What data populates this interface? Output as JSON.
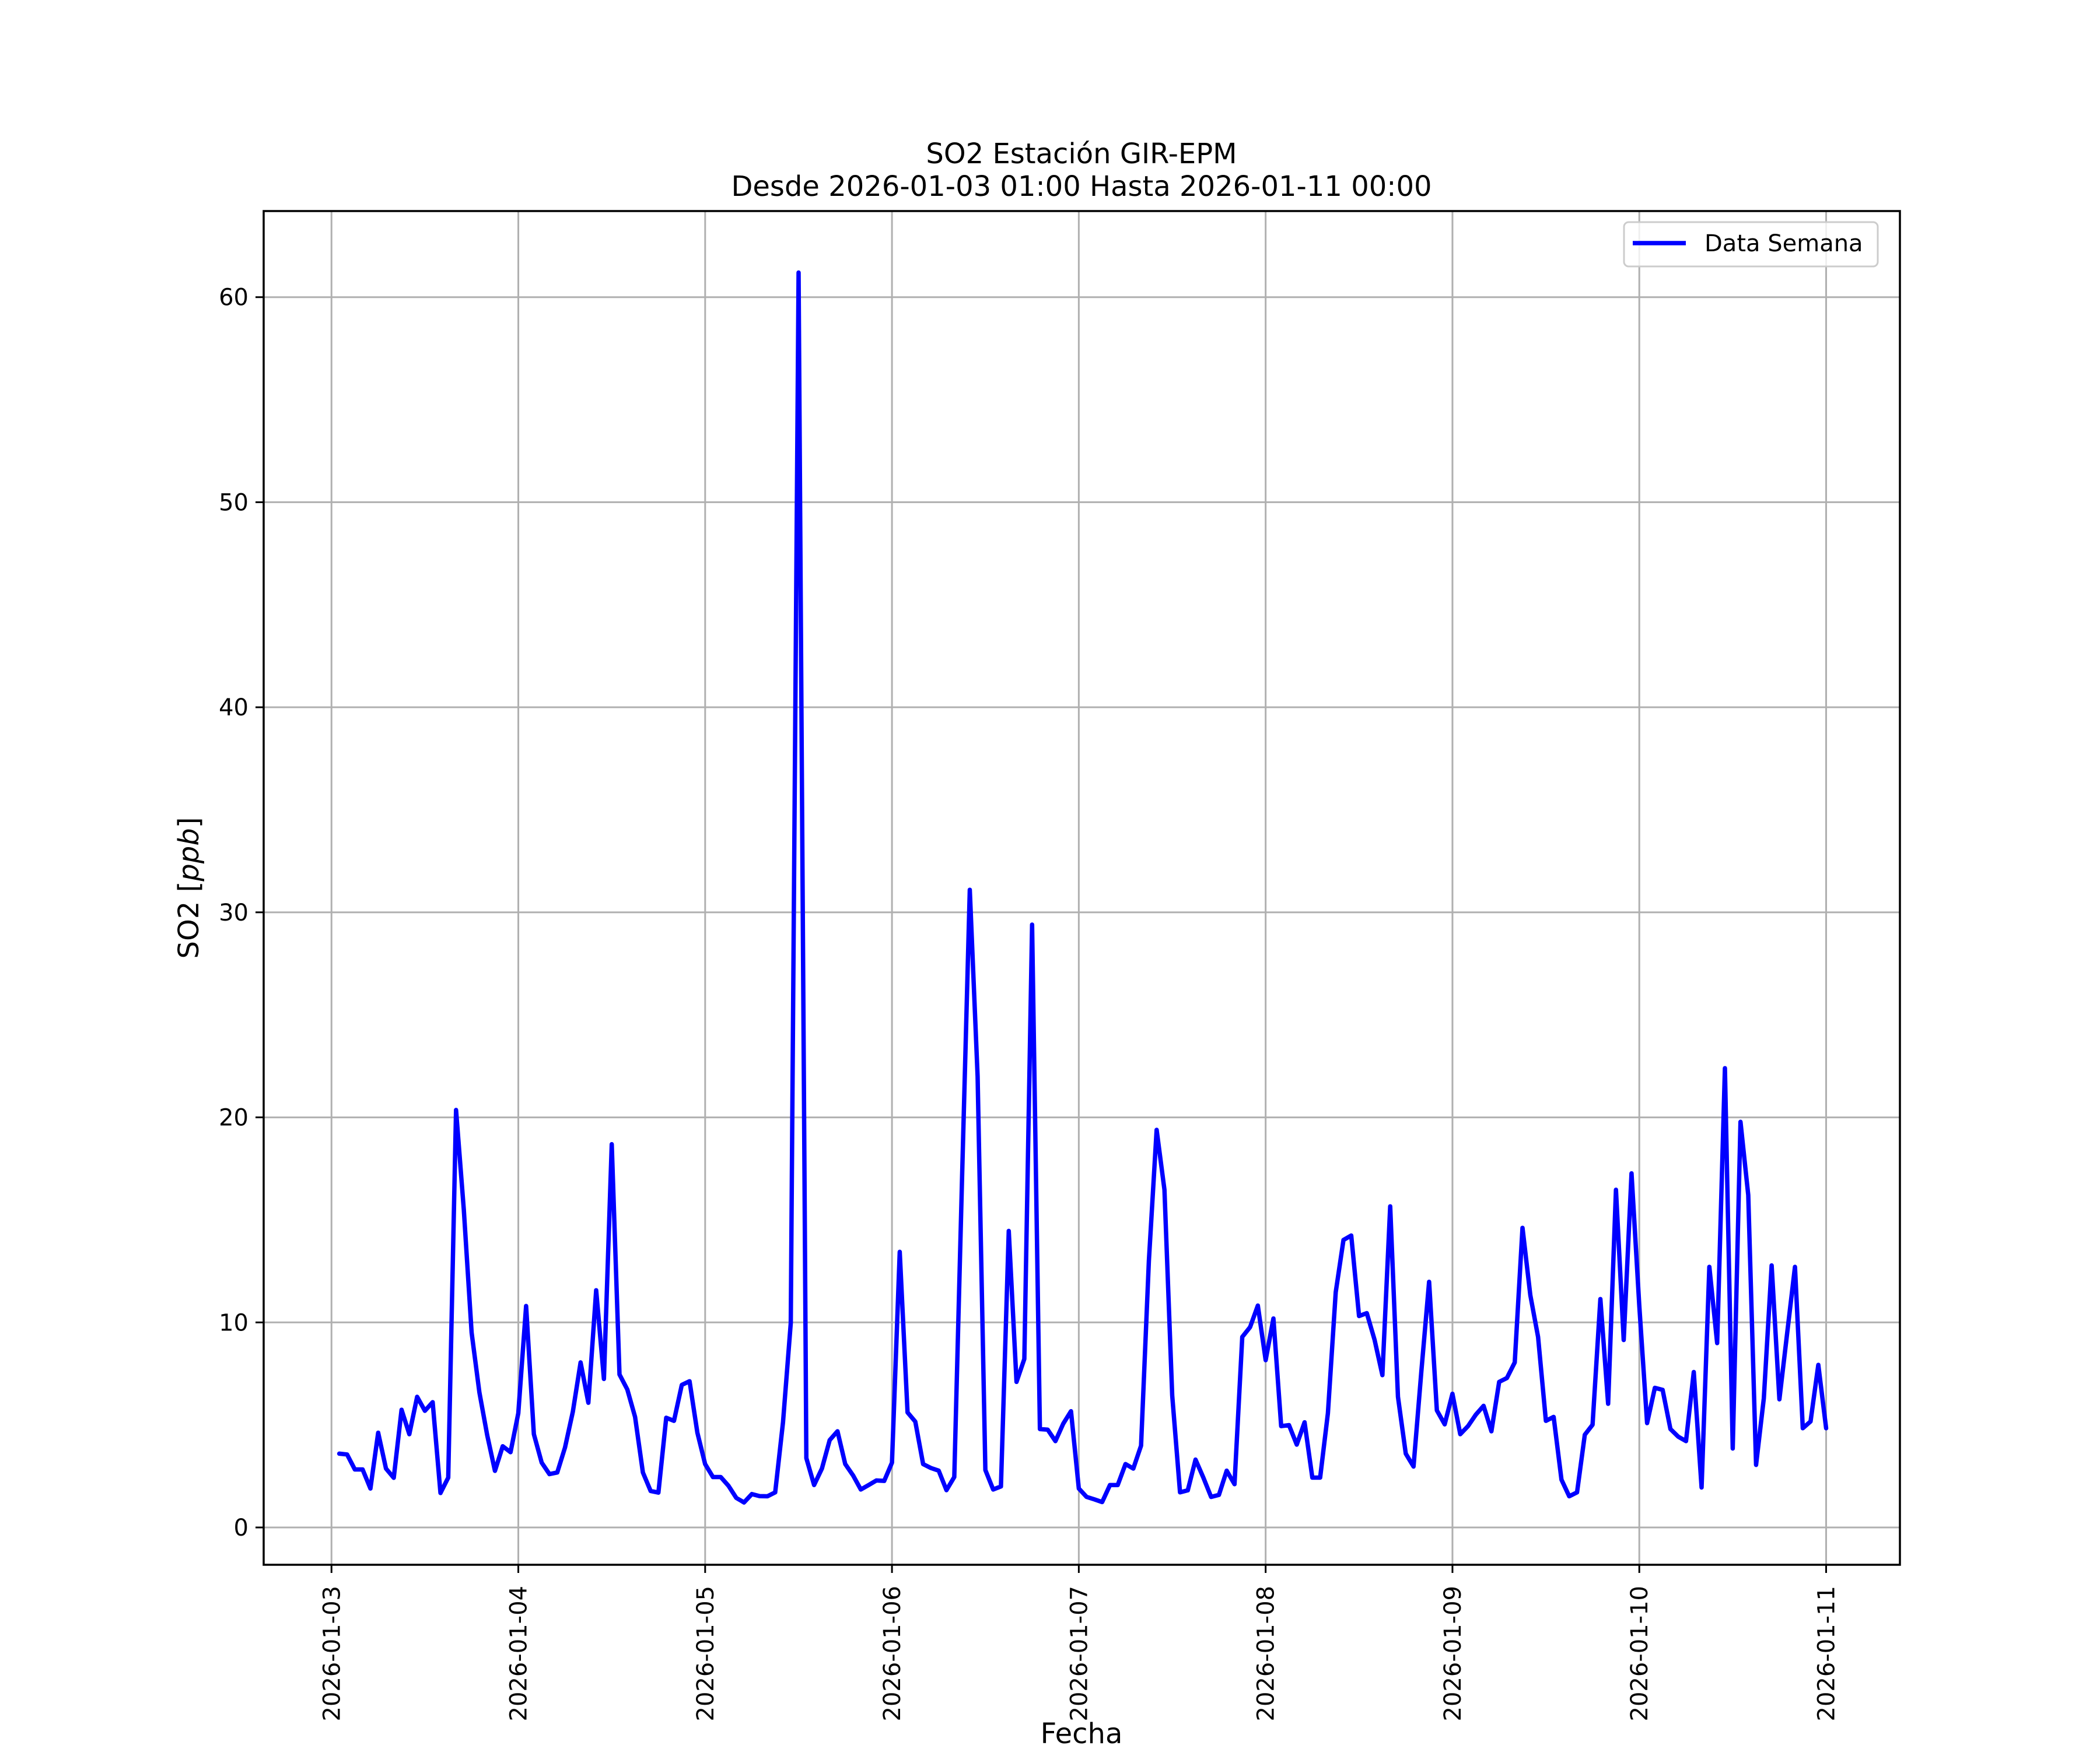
{
  "chart_data": {
    "type": "line",
    "title": [
      "SO2 Estación GIR-EPM",
      "Desde 2026-01-03 01:00 Hasta 2026-01-11 00:00"
    ],
    "xlabel": "Fecha",
    "ylabel": "SO2 [",
    "ylabel_unit": "ppb",
    "ylabel_close": "]",
    "x_start": "2026-01-03 01:00",
    "x_step_hours": 1,
    "x_ticks": [
      "2026-01-03",
      "2026-01-04",
      "2026-01-05",
      "2026-01-06",
      "2026-01-07",
      "2026-01-08",
      "2026-01-09",
      "2026-01-10",
      "2026-01-11"
    ],
    "y_ticks": [
      0,
      10,
      20,
      30,
      40,
      50,
      60
    ],
    "xlim_days_from_first_tick": [
      -0.363,
      8.395
    ],
    "ylim": [
      -1.82,
      64.2
    ],
    "grid": true,
    "legend_position": "upper-right",
    "series": [
      {
        "name": "Data Semana",
        "color": "#0000ff",
        "values": [
          3.6,
          3.56,
          2.83,
          2.83,
          1.9,
          4.62,
          2.87,
          2.42,
          5.74,
          4.55,
          6.37,
          5.69,
          6.11,
          1.68,
          2.43,
          20.36,
          15.5,
          9.5,
          6.59,
          4.5,
          2.76,
          3.96,
          3.67,
          5.57,
          10.8,
          4.55,
          3.16,
          2.6,
          2.68,
          3.9,
          5.64,
          8.05,
          6.08,
          11.57,
          7.24,
          18.69,
          7.46,
          6.73,
          5.39,
          2.68,
          1.78,
          1.7,
          5.35,
          5.2,
          6.95,
          7.13,
          4.62,
          3.09,
          2.46,
          2.46,
          2.03,
          1.44,
          1.22,
          1.63,
          1.53,
          1.52,
          1.71,
          5.13,
          9.97,
          61.2,
          3.38,
          2.07,
          2.87,
          4.26,
          4.69,
          3.09,
          2.54,
          1.85,
          2.07,
          2.29,
          2.27,
          3.16,
          13.44,
          5.61,
          5.16,
          3.09,
          2.9,
          2.77,
          1.82,
          2.46,
          17.0,
          31.1,
          22.0,
          2.8,
          1.85,
          2.0,
          14.46,
          7.1,
          8.22,
          29.4,
          4.8,
          4.77,
          4.21,
          5.06,
          5.67,
          1.9,
          1.49,
          1.37,
          1.24,
          2.07,
          2.07,
          3.09,
          2.87,
          3.99,
          13.0,
          19.39,
          16.47,
          6.44,
          1.71,
          1.81,
          3.31,
          2.43,
          1.49,
          1.59,
          2.77,
          2.11,
          9.29,
          9.77,
          10.82,
          8.16,
          10.19,
          4.94,
          4.99,
          4.04,
          5.13,
          2.43,
          2.43,
          5.57,
          11.47,
          14.02,
          14.24,
          10.31,
          10.45,
          9.14,
          7.43,
          15.66,
          6.37,
          3.6,
          2.97,
          7.61,
          11.98,
          5.71,
          5.03,
          6.52,
          4.55,
          4.94,
          5.5,
          5.93,
          4.69,
          7.1,
          7.29,
          8.05,
          14.61,
          11.33,
          9.29,
          5.2,
          5.39,
          2.33,
          1.52,
          1.71,
          4.52,
          5.01,
          11.14,
          6.03,
          16.47,
          9.14,
          17.27,
          10.82,
          5.09,
          6.81,
          6.71,
          4.8,
          4.43,
          4.21,
          7.58,
          1.95,
          12.71,
          8.99,
          22.4,
          3.85,
          19.78,
          16.21,
          3.05,
          6.3,
          12.78,
          6.25,
          9.5,
          12.71,
          4.84,
          5.17,
          7.93,
          4.84
        ]
      }
    ]
  }
}
